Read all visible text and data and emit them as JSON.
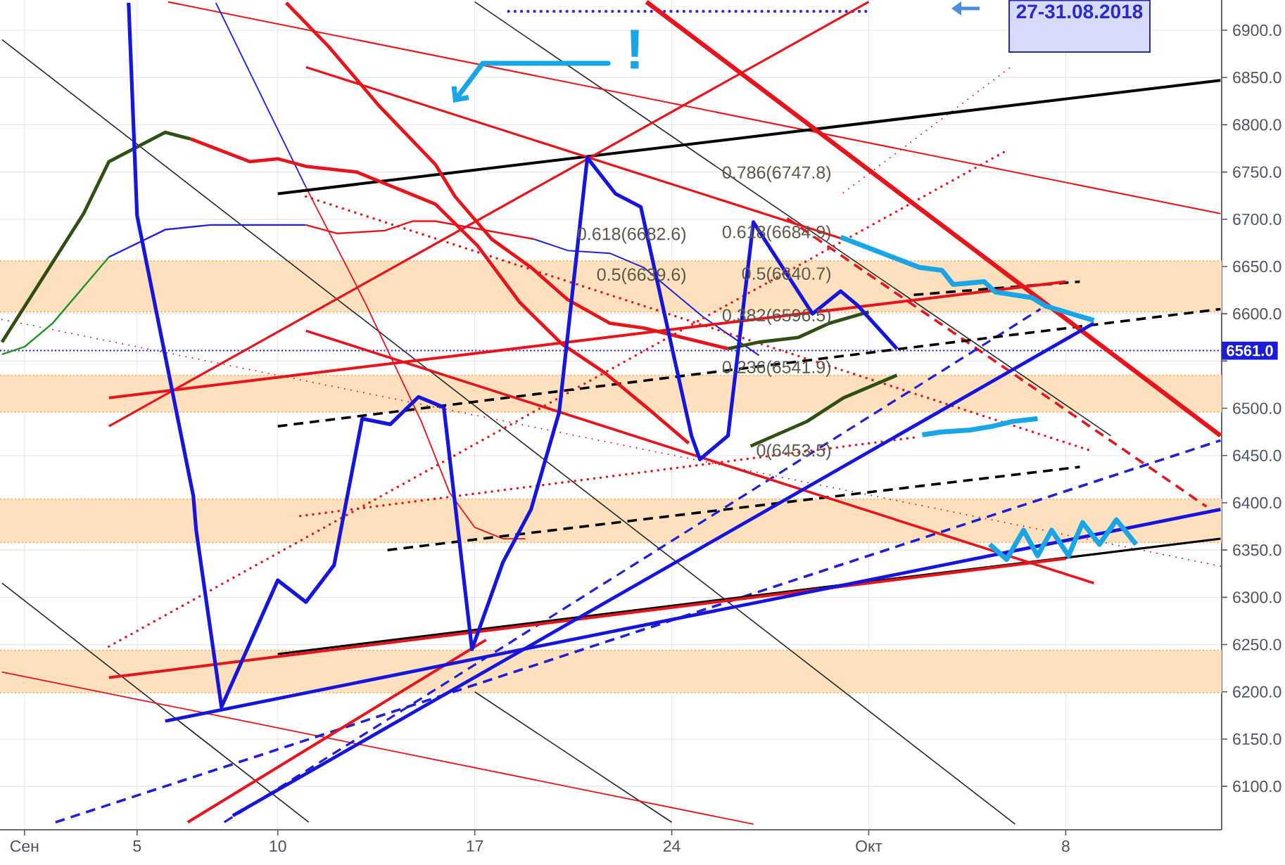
{
  "chart_data": {
    "type": "line",
    "xlim": [
      "2018-08-31T03:07",
      "2018-10-13T12:58"
    ],
    "ylim": [
      6054,
      6932
    ],
    "xticks": [
      {
        "value": "2018-09-01",
        "label": "Сен"
      },
      {
        "value": "2018-09-05",
        "label": "5"
      },
      {
        "value": "2018-09-10",
        "label": "10"
      },
      {
        "value": "2018-09-17",
        "label": "17"
      },
      {
        "value": "2018-09-24",
        "label": "24"
      },
      {
        "value": "2018-10-01",
        "label": "Окт"
      },
      {
        "value": "2018-10-08",
        "label": "8"
      }
    ],
    "yticks": [
      {
        "value": 6100,
        "label": "6100.0"
      },
      {
        "value": 6150,
        "label": "6150.0"
      },
      {
        "value": 6200,
        "label": "6200.0"
      },
      {
        "value": 6250,
        "label": "6250.0"
      },
      {
        "value": 6300,
        "label": "6300.0"
      },
      {
        "value": 6350,
        "label": "6350.0"
      },
      {
        "value": 6400,
        "label": "6400.0"
      },
      {
        "value": 6450,
        "label": "6450.0"
      },
      {
        "value": 6500,
        "label": "6500.0"
      },
      {
        "value": 6550,
        "label": null
      },
      {
        "value": 6600,
        "label": "6600.0"
      },
      {
        "value": 6650,
        "label": "6650.0"
      },
      {
        "value": 6700,
        "label": "6700.0"
      },
      {
        "value": 6750,
        "label": "6750.0"
      },
      {
        "value": 6800,
        "label": "6800.0"
      },
      {
        "value": 6850,
        "label": "6850.0"
      },
      {
        "value": 6900,
        "label": "6900.0"
      }
    ],
    "grid": true,
    "bands": [
      {
        "axis": "y",
        "from": 6602,
        "to": 6656,
        "color": "#fde1bf"
      },
      {
        "axis": "y",
        "from": 6496,
        "to": 6535,
        "color": "#fde1bf"
      },
      {
        "axis": "y",
        "from": 6358,
        "to": 6404,
        "color": "#fde1bf"
      },
      {
        "axis": "y",
        "from": 6199,
        "to": 6244,
        "color": "#fde1bf"
      }
    ],
    "ref_lines": [
      {
        "axis": "y",
        "value": 6561,
        "label": "6561.0",
        "color": "#1c1cd8",
        "line_style": "dotted"
      }
    ],
    "annotations": [
      "27-31.08.2018",
      "!",
      "0.786(6747.8)",
      "0.618(6682.6)",
      "0.618(6684.9)",
      "0.5(6639.6)",
      "0.5(6640.7)",
      "0.382(6596.5)",
      "0.236(6541.9)",
      "0(6453.5)"
    ],
    "series": [
      {
        "color": "#262626",
        "line_style": "solid",
        "x": [
          "2018-08-31T04:48",
          "2018-10-06T04:48"
        ],
        "values": [
          6890,
          6060
        ]
      },
      {
        "color": "#262626",
        "line_style": "solid",
        "x": [
          "2018-09-17",
          "2018-10-09T14:24"
        ],
        "values": [
          6930,
          6471
        ]
      },
      {
        "color": "#262626",
        "line_style": "solid",
        "x": [
          "2018-08-31T04:48",
          "2018-09-11T02:24"
        ],
        "values": [
          6315,
          6062
        ]
      },
      {
        "color": "#262626",
        "line_style": "solid",
        "x": [
          "2018-09-17",
          "2018-09-24"
        ],
        "values": [
          6200,
          6062
        ]
      },
      {
        "color": "#e8141c",
        "line_style": "solid",
        "x": [
          "2018-08-31T04:48",
          "2018-09-26T21:36"
        ],
        "values": [
          6221,
          6060
        ]
      },
      {
        "color": "#e8141c",
        "line_style": "solid",
        "x": [
          "2018-09-06T02:24",
          "2018-10-13T12:00"
        ],
        "values": [
          6930,
          6706
        ]
      },
      {
        "color": "#e8141c",
        "line_style": "dotted",
        "x": [
          "2018-08-31T04:48",
          "2018-10-13T12:00"
        ],
        "values": [
          6594,
          6333
        ]
      },
      {
        "color": "#e8141c",
        "line_style": "dotted",
        "x": [
          "2018-09-30T02:24",
          "2018-10-06"
        ],
        "values": [
          6728,
          6860
        ]
      },
      {
        "color": "#22922a",
        "line_style": "solid",
        "x": [
          "2018-08-31T04:48",
          "2018-09-01",
          "2018-09-02",
          "2018-09-04"
        ],
        "values": [
          6557,
          6565,
          6590,
          6660
        ]
      },
      {
        "color": "#2020e0",
        "line_style": "solid",
        "x": [
          "2018-09-04",
          "2018-09-06",
          "2018-09-07T14:24",
          "2018-09-11"
        ],
        "values": [
          6660,
          6689,
          6694,
          6694
        ]
      },
      {
        "color": "#e8141c",
        "line_style": "solid",
        "x": [
          "2018-09-11",
          "2018-09-12T02:24",
          "2018-09-13T19:12",
          "2018-09-14T19:12",
          "2018-09-15T14:24",
          "2018-09-19T02:24"
        ],
        "values": [
          6694,
          6685,
          6688,
          6698,
          6698,
          6679
        ]
      },
      {
        "color": "#2020e0",
        "line_style": "solid",
        "x": [
          "2018-09-19T02:24",
          "2018-09-20T07:12",
          "2018-09-21T19:12",
          "2018-09-23",
          "2018-09-25T02:24",
          "2018-09-27T02:24"
        ],
        "values": [
          6679,
          6667,
          6664,
          6649,
          6597,
          6556
        ]
      },
      {
        "color": "#2020e0",
        "line_style": "solid",
        "x": [
          "2018-09-07T19:12",
          "2018-09-11"
        ],
        "values": [
          6929,
          6734
        ]
      },
      {
        "color": "#e8141c",
        "line_style": "solid",
        "x": [
          "2018-09-11",
          "2018-09-13T02:24",
          "2018-09-15T02:24",
          "2018-09-16T02:24",
          "2018-09-17",
          "2018-09-18",
          "2018-09-18T19:12"
        ],
        "values": [
          6734,
          6612,
          6486,
          6411,
          6374,
          6362,
          6362
        ]
      },
      {
        "color": "#e8141c",
        "line_style": "dotted",
        "x": [
          "2018-09-04",
          "2018-10-05T19:12"
        ],
        "values": [
          6248,
          6771
        ]
      },
      {
        "color": "#e8141c",
        "line_style": "dotted",
        "x": [
          "2018-09-11",
          "2018-10-08T19:12"
        ],
        "values": [
          6724,
          6456
        ]
      },
      {
        "color": "#e8141c",
        "line_style": "dotted",
        "x": [
          "2018-09-10T19:12",
          "2018-10-02T14:24"
        ],
        "values": [
          6386,
          6469
        ]
      },
      {
        "color": "#e8141c",
        "line_style": "dashed",
        "x": [
          "2018-09-28T02:24",
          "2018-10-13"
        ],
        "values": [
          6701,
          6396
        ]
      },
      {
        "color": "#2a2ae0",
        "line_style": "dotted",
        "x": [
          "2018-09-18T04:48",
          "2018-09-30T21:36"
        ],
        "values": [
          6920,
          6920
        ]
      },
      {
        "color": "#1f1fd8",
        "line_style": "dashed",
        "x": [
          "2018-09-02T02:24",
          "2018-10-13T12:00"
        ],
        "values": [
          6062,
          6466
        ]
      },
      {
        "color": "#1f1fd8",
        "line_style": "dashed",
        "x": [
          "2018-09-08T02:24",
          "2018-10-07T02:24"
        ],
        "values": [
          6062,
          6605
        ]
      },
      {
        "color": "#000000",
        "line_style": "dashed",
        "x": [
          "2018-09-10",
          "2018-10-13T12:00"
        ],
        "values": [
          6481,
          6605
        ]
      },
      {
        "color": "#000000",
        "line_style": "dashed",
        "x": [
          "2018-10-02T14:24",
          "2018-10-08T12:00"
        ],
        "values": [
          6620,
          6634
        ]
      },
      {
        "color": "#000000",
        "line_style": "dashed",
        "x": [
          "2018-09-13T21:36",
          "2018-10-08T12:00"
        ],
        "values": [
          6350,
          6438
        ]
      },
      {
        "color": "#000000",
        "line_style": "solid",
        "x": [
          "2018-09-10",
          "2018-10-13T12:00"
        ],
        "values": [
          6727,
          6847
        ]
      },
      {
        "color": "#000000",
        "line_style": "solid",
        "x": [
          "2018-09-10",
          "2018-10-13T12:00"
        ],
        "values": [
          6240,
          6362
        ]
      },
      {
        "color": "#e8141c",
        "line_style": "solid",
        "x": [
          "2018-09-04",
          "2018-10-08"
        ],
        "values": [
          6215,
          6341
        ]
      },
      {
        "color": "#e8141c",
        "line_style": "solid",
        "x": [
          "2018-09-04",
          "2018-10-08"
        ],
        "values": [
          6511,
          6634
        ]
      },
      {
        "color": "#e8141c",
        "line_style": "solid",
        "x": [
          "2018-09-04",
          "2018-10-01"
        ],
        "values": [
          6481,
          6930
        ]
      },
      {
        "color": "#e8141c",
        "line_style": "solid",
        "x": [
          "2018-09-11",
          "2018-09-30T02:24"
        ],
        "values": [
          6861,
          6679
        ]
      },
      {
        "color": "#e8141c",
        "line_style": "solid",
        "x": [
          "2018-09-11",
          "2018-10-09"
        ],
        "values": [
          6582,
          6315
        ]
      },
      {
        "color": "#e8141c",
        "line_style": "solid",
        "x": [
          "2018-09-06T19:12",
          "2018-09-17T09:36"
        ],
        "values": [
          6062,
          6255
        ]
      },
      {
        "color": "#e8141c",
        "line_style": "solid",
        "x": [
          "2018-09-23T02:24",
          "2018-10-13T12:00"
        ],
        "values": [
          6930,
          6471
        ]
      },
      {
        "color": "#1515dd",
        "line_style": "solid",
        "x": [
          "2018-09-06",
          "2018-10-13T12:00"
        ],
        "values": [
          6169,
          6393
        ]
      },
      {
        "color": "#1515dd",
        "line_style": "solid",
        "x": [
          "2018-09-08T09:36",
          "2018-10-09"
        ],
        "values": [
          6069,
          6590
        ]
      },
      {
        "color": "#2f5012",
        "line_style": "solid",
        "x": [
          "2018-08-31T04:48",
          "2018-09-03T02:24",
          "2018-09-04",
          "2018-09-06",
          "2018-09-06T21:36"
        ],
        "values": [
          6570,
          6706,
          6761,
          6792,
          6785
        ]
      },
      {
        "color": "#e8141c",
        "line_style": "solid",
        "x": [
          "2018-09-06T21:36",
          "2018-09-09",
          "2018-09-10",
          "2018-09-11",
          "2018-09-12T19:12",
          "2018-09-15T14:24",
          "2018-09-17T02:24",
          "2018-09-18T14:24",
          "2018-09-20T02:24",
          "2018-09-21T14:24",
          "2018-09-23T02:24",
          "2018-09-24T14:24"
        ],
        "values": [
          6785,
          6761,
          6764,
          6756,
          6750,
          6716,
          6672,
          6612,
          6568,
          6538,
          6501,
          6463
        ]
      },
      {
        "color": "#e8141c",
        "line_style": "solid",
        "x": [
          "2018-09-10T07:12",
          "2018-09-11T19:12",
          "2018-09-13T14:24",
          "2018-09-15T14:24",
          "2018-09-16T07:12",
          "2018-09-17T14:24",
          "2018-09-19",
          "2018-09-20T07:12",
          "2018-09-21T19:12",
          "2018-09-23",
          "2018-09-26"
        ],
        "values": [
          6929,
          6883,
          6820,
          6758,
          6724,
          6679,
          6649,
          6615,
          6590,
          6585,
          6563
        ]
      },
      {
        "color": "#2f5012",
        "line_style": "solid",
        "x": [
          "2018-09-26",
          "2018-09-27T02:24",
          "2018-09-28T12:00",
          "2018-09-29T14:24",
          "2018-10-01"
        ],
        "values": [
          6563,
          6570,
          6575,
          6590,
          6602
        ]
      },
      {
        "color": "#2f5012",
        "line_style": "solid",
        "x": [
          "2018-09-26T19:12",
          "2018-09-28T19:12",
          "2018-09-30T02:24",
          "2018-10-02"
        ],
        "values": [
          6460,
          6486,
          6511,
          6535
        ]
      },
      {
        "color": "#1515dd",
        "line_style": "solid",
        "x": [
          "2018-09-04T16:48",
          "2018-09-05",
          "2018-09-07",
          "2018-09-07T02:24",
          "2018-09-08",
          "2018-09-10",
          "2018-09-11",
          "2018-09-12",
          "2018-09-13",
          "2018-09-14",
          "2018-09-15",
          "2018-09-15T21:36",
          "2018-09-16T21:36",
          "2018-09-18",
          "2018-09-19",
          "2018-09-20",
          "2018-09-21",
          "2018-09-22",
          "2018-09-22T21:36",
          "2018-09-24T16:48",
          "2018-09-25",
          "2018-09-26",
          "2018-09-26T21:36",
          "2018-09-29",
          "2018-09-30",
          "2018-09-30T14:24",
          "2018-10-02"
        ],
        "values": [
          6929,
          6704,
          6407,
          6371,
          6184,
          6318,
          6295,
          6334,
          6489,
          6483,
          6512,
          6501,
          6245,
          6337,
          6393,
          6496,
          6765,
          6727,
          6713,
          6471,
          6446,
          6471,
          6697,
          6600,
          6624,
          6609,
          6563
        ]
      },
      {
        "color": "#1aa6e6",
        "line_style": "solid",
        "x": [
          "2018-09-30",
          "2018-10-02T19:12",
          "2018-10-03T14:24",
          "2018-10-04",
          "2018-10-05T02:24",
          "2018-10-05T12:00",
          "2018-10-06T19:12",
          "2018-10-07T07:12",
          "2018-10-09"
        ],
        "values": [
          6681,
          6649,
          6646,
          6631,
          6634,
          6623,
          6617,
          6608,
          6593
        ]
      },
      {
        "color": "#1aa6e6",
        "line_style": "solid",
        "x": [
          "2018-10-02T21:36",
          "2018-10-03T14:24",
          "2018-10-04T14:24",
          "2018-10-05T09:36",
          "2018-10-06T02:24",
          "2018-10-07"
        ],
        "values": [
          6472,
          6475,
          6477,
          6481,
          6486,
          6489
        ]
      },
      {
        "color": "#1aa6e6",
        "line_style": "solid",
        "x": [
          "2018-10-05T07:12",
          "2018-10-05T21:36",
          "2018-10-06T12:00",
          "2018-10-07",
          "2018-10-07T12:00",
          "2018-10-08T02:24",
          "2018-10-08T14:24",
          "2018-10-09T04:48",
          "2018-10-09T19:12",
          "2018-10-10T12:00"
        ],
        "values": [
          6356,
          6340,
          6371,
          6344,
          6371,
          6344,
          6379,
          6356,
          6382,
          6356
        ]
      }
    ]
  }
}
